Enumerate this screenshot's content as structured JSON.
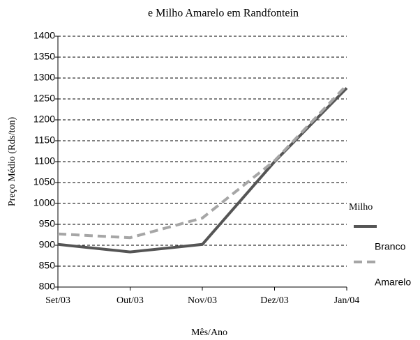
{
  "chart_data": {
    "type": "line",
    "title": "e Milho Amarelo em Randfontein",
    "x_label": "Mês/Ano",
    "y_label": "Preço Médio (Rds/ton)",
    "categories": [
      "Set/03",
      "Out/03",
      "Nov/03",
      "Dez/03",
      "Jan/04"
    ],
    "series": [
      {
        "name": "Branco",
        "color": "#555555",
        "dash": false,
        "values": [
          902,
          884,
          902,
          1100,
          1276
        ]
      },
      {
        "name": "Amarelo",
        "color": "#a6a6a6",
        "dash": true,
        "values": [
          927,
          918,
          965,
          1102,
          1283
        ]
      }
    ],
    "legend_title": "Milho",
    "legend": "right",
    "ylim": [
      800,
      1400
    ],
    "yticks": [
      800,
      850,
      900,
      950,
      1000,
      1050,
      1100,
      1150,
      1200,
      1250,
      1300,
      1350,
      1400
    ],
    "grid": true
  }
}
